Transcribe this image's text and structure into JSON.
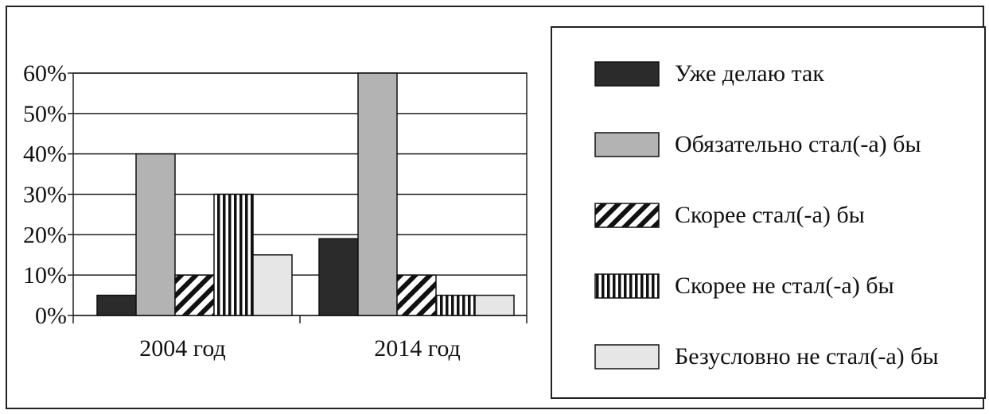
{
  "chart_data": {
    "type": "bar",
    "categories": [
      "2004 год",
      "2014 год"
    ],
    "series": [
      {
        "name": "Уже делаю так",
        "values": [
          5,
          19
        ],
        "color": "#2b2b2b",
        "pattern": "solid"
      },
      {
        "name": "Обязательно стал(-а) бы",
        "values": [
          40,
          60
        ],
        "color": "#b3b3b3",
        "pattern": "solid"
      },
      {
        "name": "Скорее стал(-а) бы",
        "values": [
          10,
          10
        ],
        "color": "#111111",
        "pattern": "diagonal-stripes"
      },
      {
        "name": "Скорее не стал(-а) бы",
        "values": [
          30,
          5
        ],
        "color": "#111111",
        "pattern": "vertical-stripes"
      },
      {
        "name": "Безусловно не стал(-а) бы",
        "values": [
          15,
          5
        ],
        "color": "#e6e6e6",
        "pattern": "solid"
      }
    ],
    "yticks": [
      "0%",
      "10%",
      "20%",
      "30%",
      "40%",
      "50%",
      "60%"
    ],
    "ylim": [
      0,
      60
    ],
    "grid": true,
    "legend": "right"
  }
}
